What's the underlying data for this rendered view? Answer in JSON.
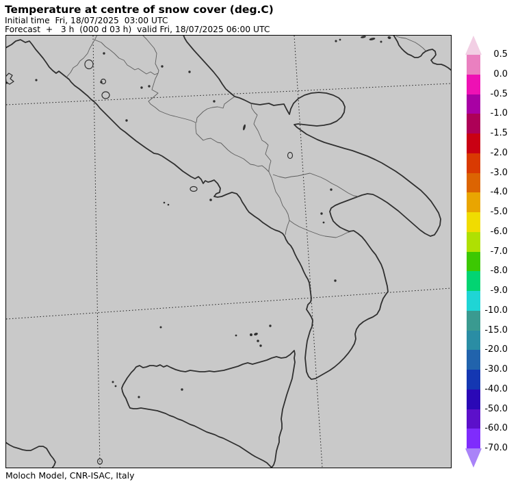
{
  "header": {
    "title": "Temperature at centre of snow cover (deg.C)",
    "initial_time_line": "Initial time  Fri, 18/07/2025  03:00 UTC",
    "forecast_line": "Forecast  +   3 h  (000 d 03 h)  valid Fri, 18/07/2025 06:00 UTC"
  },
  "footer": {
    "caption": "Moloch Model, CNR-ISAC, Italy"
  },
  "map": {
    "background_color": "#c9c9c9",
    "coast_color": "#2f2f2f",
    "border_color": "#5c5c5c",
    "grid_color": "#1a1a1a"
  },
  "colorbar": {
    "arrow_top_color": "#f2cfe4",
    "arrow_bottom_color": "#a983f8",
    "labels": [
      "0.5",
      "0.0",
      "-0.5",
      "-1.0",
      "-1.5",
      "-2.0",
      "-3.0",
      "-4.0",
      "-5.0",
      "-6.0",
      "-7.0",
      "-8.0",
      "-9.0",
      "-10.0",
      "-15.0",
      "-20.0",
      "-30.0",
      "-40.0",
      "-50.0",
      "-60.0",
      "-70.0"
    ],
    "band_colors": [
      "#ea80c0",
      "#ee11b4",
      "#a801a4",
      "#ad0157",
      "#c90113",
      "#d93a02",
      "#dc6402",
      "#e9a501",
      "#f0dc01",
      "#afe002",
      "#3cc802",
      "#02d472",
      "#1fd5d5",
      "#3a9a90",
      "#2a8da4",
      "#2163ac",
      "#1437b2",
      "#2a08b6",
      "#5c10ca",
      "#7f2cfc"
    ]
  }
}
